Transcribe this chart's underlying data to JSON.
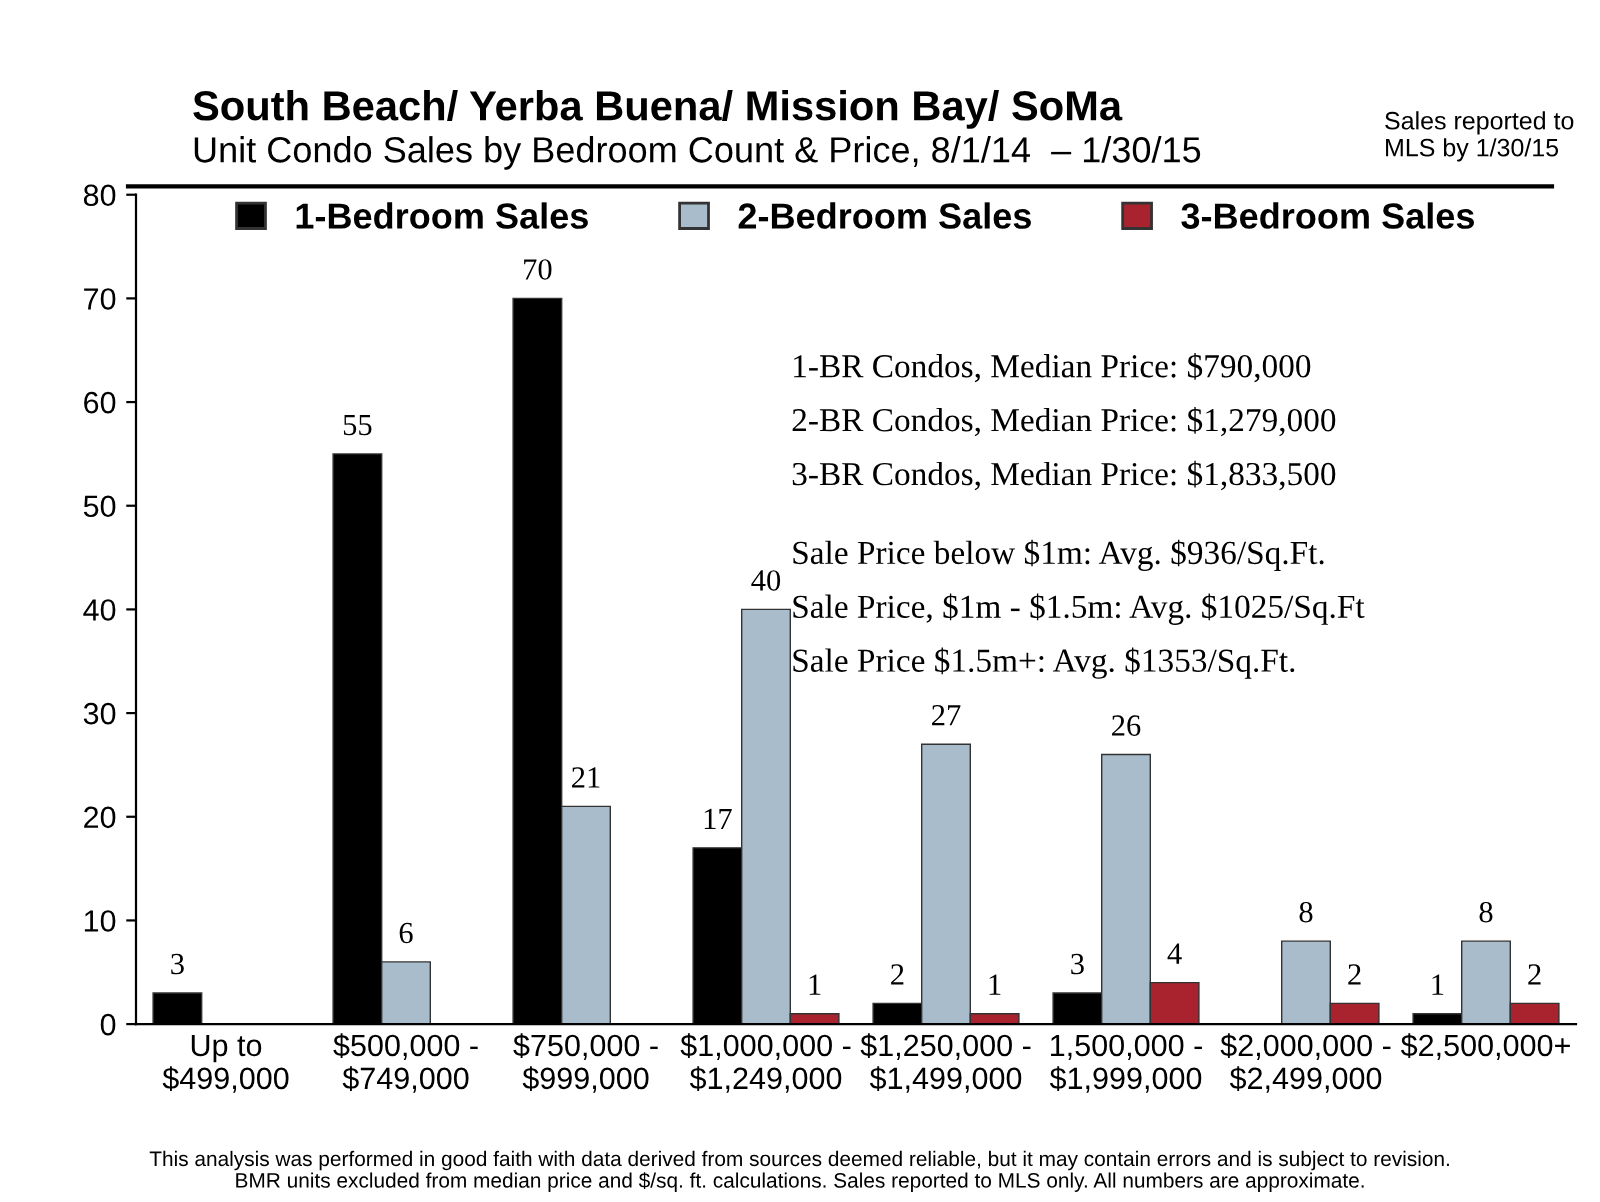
{
  "chart_data": {
    "type": "bar",
    "title": "South Beach/ Yerba Buena/ Mission Bay/ SoMa",
    "subtitle": "Unit Condo Sales by Bedroom Count & Price, 8/1/14  – 1/30/15",
    "categories": [
      "Up to\n$499,000",
      "$500,000 -\n$749,000",
      "$750,000 -\n$999,000",
      "$1,000,000 -\n$1,249,000",
      "$1,250,000 -\n$1,499,000",
      "1,500,000 -\n$1,999,000",
      "$2,000,000 -\n$2,499,000",
      "$2,500,000+"
    ],
    "series": [
      {
        "name": "1-Bedroom Sales",
        "color": "#000000",
        "values": [
          3,
          55,
          70,
          17,
          2,
          3,
          null,
          1
        ]
      },
      {
        "name": "2-Bedroom Sales",
        "color": "#a9bccb",
        "values": [
          null,
          6,
          21,
          40,
          27,
          26,
          8,
          8
        ]
      },
      {
        "name": "3-Bedroom Sales",
        "color": "#a8232e",
        "values": [
          null,
          null,
          null,
          1,
          1,
          4,
          2,
          2
        ]
      }
    ],
    "ylim": [
      0,
      80
    ],
    "yticks": [
      0,
      10,
      20,
      30,
      40,
      50,
      60,
      70,
      80
    ],
    "grid": false,
    "legend": "top",
    "data_labels": true,
    "annotations": [
      "Sales reported to\nMLS by 1/30/15",
      "1-BR Condos, Median Price: $790,000",
      "2-BR Condos, Median Price: $1,279,000",
      "3-BR Condos, Median Price: $1,833,500",
      "Sale Price below $1m: Avg. $936/Sq.Ft.",
      "Sale Price, $1m - $1.5m: Avg. $1025/Sq.Ft",
      "Sale Price $1.5m+: Avg. $1353/Sq.Ft.",
      "This analysis was performed in good faith with data derived from sources deemed reliable, but it may contain errors and is subject to revision.",
      "BMR units excluded from median price and $/sq. ft. calculations. Sales reported to MLS only. All numbers are approximate."
    ]
  }
}
